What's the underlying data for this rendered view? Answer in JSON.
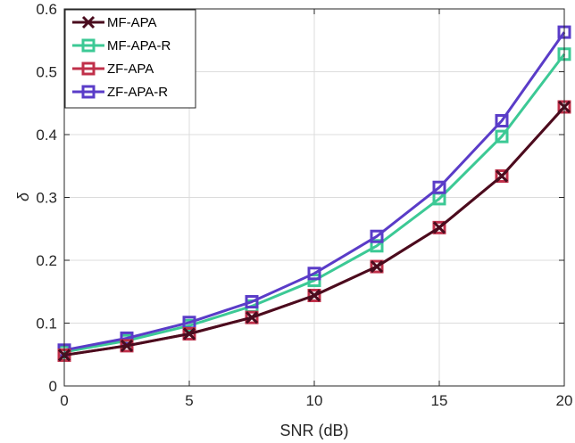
{
  "chart_data": {
    "type": "line",
    "xlabel": "SNR (dB)",
    "ylabel": "δ",
    "xlim": [
      0,
      20
    ],
    "ylim": [
      0,
      0.6
    ],
    "xticks": [
      0,
      5,
      10,
      15,
      20
    ],
    "yticks": [
      0,
      0.1,
      0.2,
      0.3,
      0.4,
      0.5,
      0.6
    ],
    "xtick_labels": [
      "0",
      "5",
      "10",
      "15",
      "20"
    ],
    "ytick_labels": [
      "0",
      "0.1",
      "0.2",
      "0.3",
      "0.4",
      "0.5",
      "0.6"
    ],
    "grid": true,
    "legend_position": "top-left",
    "x": [
      0,
      2.5,
      5,
      7.5,
      10,
      12.5,
      15,
      17.5,
      20
    ],
    "series": [
      {
        "name": "MF-APA",
        "color": "#4a0c1e",
        "marker": "x",
        "values": [
          0.049,
          0.064,
          0.083,
          0.109,
          0.144,
          0.19,
          0.252,
          0.334,
          0.444
        ]
      },
      {
        "name": "MF-APA-R",
        "color": "#3cc995",
        "marker": "square",
        "values": [
          0.054,
          0.072,
          0.096,
          0.127,
          0.168,
          0.223,
          0.298,
          0.397,
          0.528
        ]
      },
      {
        "name": "ZF-APA",
        "color": "#c0304a",
        "marker": "square",
        "values": [
          0.049,
          0.064,
          0.083,
          0.109,
          0.144,
          0.19,
          0.252,
          0.334,
          0.444
        ]
      },
      {
        "name": "ZF-APA-R",
        "color": "#5a3cc8",
        "marker": "square",
        "values": [
          0.057,
          0.076,
          0.101,
          0.134,
          0.179,
          0.238,
          0.316,
          0.422,
          0.563
        ]
      }
    ]
  }
}
